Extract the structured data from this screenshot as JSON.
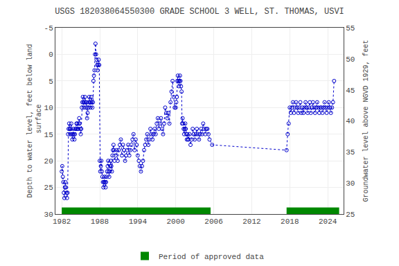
{
  "chart_data": {
    "type": "line",
    "title": "USGS 182038064550300 GRADE SCHOOL 3 WELL, ST. THOMAS, USVI",
    "ylabel": "Depth to water level, feet below land\n surface",
    "y2label": "Groundwater level above NGVD 1929, feet",
    "xlim": [
      1981.0,
      2026.5
    ],
    "xticks": [
      1982,
      1988,
      1994,
      2000,
      2006,
      2012,
      2018,
      2024
    ],
    "ylim": [
      30,
      -5
    ],
    "yticks": [
      -5,
      0,
      5,
      10,
      15,
      20,
      25,
      30
    ],
    "y2lim": [
      25,
      55
    ],
    "y2ticks": [
      25,
      30,
      35,
      40,
      45,
      50,
      55
    ],
    "grid": true,
    "legend": "bottom",
    "x": [
      1982.0,
      1982.08,
      1982.17,
      1982.25,
      1982.33,
      1982.42,
      1982.5,
      1982.58,
      1982.67,
      1982.75,
      1982.83,
      1982.92,
      1983.0,
      1983.08,
      1983.17,
      1983.25,
      1983.33,
      1983.42,
      1983.5,
      1983.58,
      1983.67,
      1983.75,
      1983.83,
      1983.92,
      1984.0,
      1984.08,
      1984.17,
      1984.25,
      1984.33,
      1984.42,
      1984.5,
      1984.58,
      1984.67,
      1984.75,
      1984.83,
      1984.92,
      1985.0,
      1985.08,
      1985.17,
      1985.25,
      1985.33,
      1985.42,
      1985.5,
      1985.58,
      1985.67,
      1985.75,
      1985.83,
      1985.92,
      1986.0,
      1986.08,
      1986.17,
      1986.25,
      1986.33,
      1986.42,
      1986.5,
      1986.58,
      1986.67,
      1986.75,
      1986.83,
      1986.92,
      1987.0,
      1987.08,
      1987.17,
      1987.25,
      1987.33,
      1987.42,
      1987.5,
      1987.58,
      1987.67,
      1987.75,
      1987.83,
      1987.92,
      1988.0,
      1988.08,
      1988.17,
      1988.25,
      1988.33,
      1988.42,
      1988.5,
      1988.58,
      1988.67,
      1988.75,
      1988.83,
      1988.92,
      1989.0,
      1989.08,
      1989.17,
      1989.25,
      1989.33,
      1989.42,
      1989.5,
      1989.58,
      1989.67,
      1989.75,
      1989.83,
      1989.92,
      1990.0,
      1990.08,
      1990.17,
      1990.25,
      1990.33,
      1990.5,
      1990.67,
      1990.83,
      1991.0,
      1991.17,
      1991.33,
      1991.5,
      1991.67,
      1991.83,
      1992.0,
      1992.17,
      1992.33,
      1992.5,
      1992.67,
      1992.83,
      1993.0,
      1993.17,
      1993.33,
      1993.5,
      1993.67,
      1993.83,
      1994.0,
      1994.17,
      1994.33,
      1994.5,
      1994.67,
      1994.83,
      1995.0,
      1995.17,
      1995.33,
      1995.5,
      1995.67,
      1995.83,
      1996.0,
      1996.17,
      1996.33,
      1996.5,
      1996.67,
      1996.83,
      1997.0,
      1997.17,
      1997.33,
      1997.5,
      1997.67,
      1997.83,
      1998.0,
      1998.17,
      1998.33,
      1998.5,
      1998.67,
      1998.83,
      1999.0,
      1999.17,
      1999.33,
      1999.5,
      1999.67,
      1999.83,
      2000.0,
      2000.08,
      2000.17,
      2000.25,
      2000.33,
      2000.42,
      2000.5,
      2000.58,
      2000.67,
      2000.75,
      2000.83,
      2000.92,
      2001.0,
      2001.08,
      2001.17,
      2001.25,
      2001.33,
      2001.42,
      2001.5,
      2001.58,
      2001.67,
      2001.75,
      2001.83,
      2001.92,
      2002.0,
      2002.17,
      2002.33,
      2002.5,
      2002.67,
      2002.83,
      2003.0,
      2003.17,
      2003.33,
      2003.5,
      2003.67,
      2003.83,
      2004.0,
      2004.17,
      2004.33,
      2004.5,
      2004.67,
      2004.83,
      2005.0,
      2005.17,
      2005.33,
      2005.75,
      2017.5,
      2017.67,
      2017.83,
      2018.0,
      2018.17,
      2018.33,
      2018.5,
      2018.67,
      2018.83,
      2019.0,
      2019.17,
      2019.33,
      2019.5,
      2019.67,
      2019.83,
      2020.0,
      2020.17,
      2020.33,
      2020.5,
      2020.67,
      2020.83,
      2021.0,
      2021.17,
      2021.33,
      2021.5,
      2021.67,
      2021.83,
      2022.0,
      2022.17,
      2022.33,
      2022.5,
      2022.67,
      2022.83,
      2023.0,
      2023.17,
      2023.33,
      2023.5,
      2023.67,
      2023.83,
      2024.0,
      2024.17,
      2024.33,
      2024.5,
      2024.67,
      2024.83,
      2025.0
    ],
    "series": [
      {
        "type": "line",
        "color": "#0000cc",
        "marker": "circle-open",
        "line_style": "dotted",
        "values": [
          22,
          21,
          23,
          24,
          26,
          27,
          25,
          24,
          25,
          26,
          27,
          26,
          15,
          14,
          13,
          14,
          15,
          14,
          13,
          15,
          16,
          15,
          14,
          15,
          16,
          15,
          14,
          14,
          13,
          13,
          14,
          14,
          13,
          12,
          13,
          14,
          15,
          14,
          10,
          9,
          8,
          9,
          10,
          9,
          8,
          9,
          10,
          9,
          12,
          11,
          10,
          9,
          8,
          9,
          10,
          9,
          8,
          9,
          10,
          9,
          5,
          4,
          3,
          0,
          -2,
          0,
          1,
          2,
          3,
          2,
          1,
          2,
          20,
          22,
          21,
          20,
          22,
          23,
          24,
          25,
          24,
          23,
          24,
          25,
          24,
          23,
          22,
          21,
          20,
          22,
          23,
          22,
          21,
          20,
          21,
          22,
          19,
          18,
          17,
          18,
          20,
          19,
          18,
          20,
          18,
          17,
          16,
          19,
          17,
          18,
          20,
          19,
          18,
          17,
          19,
          18,
          17,
          16,
          15,
          18,
          16,
          17,
          19,
          20,
          21,
          22,
          21,
          20,
          18,
          17,
          16,
          15,
          17,
          16,
          14,
          15,
          16,
          15,
          14,
          15,
          13,
          12,
          14,
          13,
          12,
          14,
          15,
          13,
          10,
          11,
          12,
          11,
          13,
          9,
          7,
          5,
          8,
          10,
          10,
          9,
          8,
          5,
          4,
          5,
          6,
          5,
          4,
          5,
          6,
          7,
          13,
          12,
          13,
          14,
          15,
          14,
          13,
          14,
          15,
          16,
          15,
          16,
          16,
          15,
          17,
          16,
          14,
          15,
          16,
          15,
          14,
          15,
          16,
          15,
          14,
          15,
          13,
          14,
          15,
          14,
          14,
          15,
          16,
          17,
          18,
          15,
          13,
          10,
          11,
          10,
          9,
          11,
          10,
          9,
          10,
          11,
          10,
          9,
          11,
          10,
          11,
          10,
          9,
          10,
          11,
          10,
          9,
          11,
          10,
          9,
          10,
          11,
          10,
          9,
          10,
          11,
          10,
          10,
          11,
          10,
          9,
          10,
          11,
          10,
          9,
          10,
          11,
          10,
          9,
          5
        ]
      },
      {
        "type": "span",
        "name": "Period of approved data",
        "color": "#008800",
        "periods": [
          [
            1982.0,
            2005.5
          ],
          [
            2017.5,
            2025.8
          ]
        ]
      }
    ]
  }
}
